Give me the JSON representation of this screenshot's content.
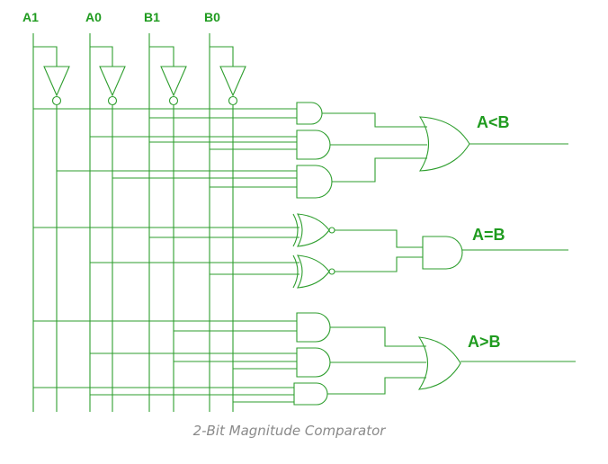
{
  "inputs": {
    "a1": "A1",
    "a0": "A0",
    "b1": "B1",
    "b0": "B0"
  },
  "outputs": {
    "less": "A<B",
    "equal": "A=B",
    "greater": "A>B"
  },
  "caption": "2-Bit Magnitude Comparator",
  "colors": {
    "wire": "#2e9e2e",
    "label": "#1f9b1f",
    "caption": "#8a8a8a"
  }
}
